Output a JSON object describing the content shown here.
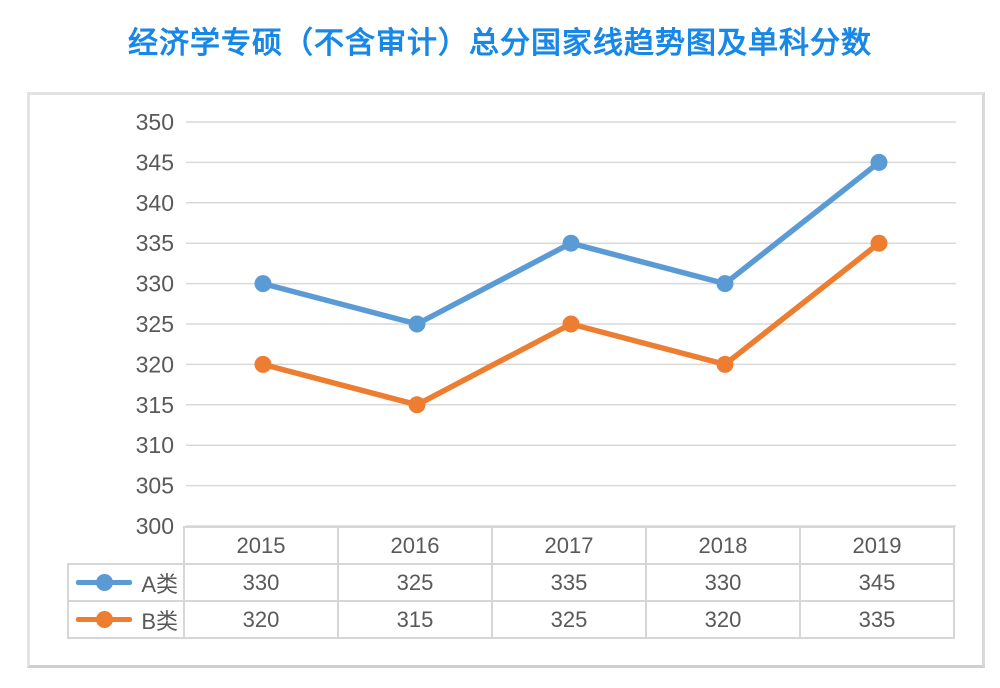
{
  "title": "经济学专硕（不含审计）总分国家线趋势图及单科分数",
  "colors": {
    "title_text": "#1787E8",
    "grid_line": "#D9D9D9",
    "axis_text": "#595959",
    "table_border": "#D6D6D6",
    "table_text": "#595959"
  },
  "chart_data": {
    "type": "line",
    "title": "经济学专硕（不含审计）总分国家线趋势图及单科分数",
    "categories": [
      "2015",
      "2016",
      "2017",
      "2018",
      "2019"
    ],
    "series": [
      {
        "name": "A类",
        "color": "#5B9BD5",
        "values": [
          330,
          325,
          335,
          330,
          345
        ]
      },
      {
        "name": "B类",
        "color": "#ED7D31",
        "values": [
          320,
          315,
          325,
          320,
          335
        ]
      }
    ],
    "xlabel": "",
    "ylabel": "",
    "ylim": [
      300,
      350
    ],
    "ytick_step": 5,
    "yticks": [
      350,
      345,
      340,
      335,
      330,
      325,
      320,
      315,
      310,
      305,
      300
    ],
    "grid": true,
    "legend_position": "table-left",
    "marker": "circle"
  }
}
